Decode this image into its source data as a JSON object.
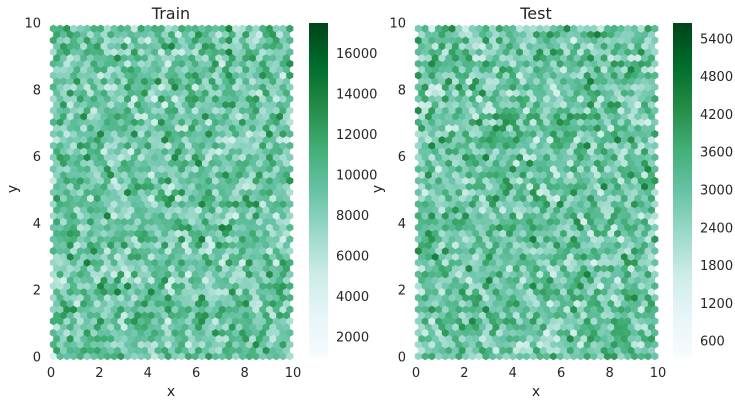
{
  "chart_data": [
    {
      "type": "hexbin",
      "title": "Train",
      "xlabel": "x",
      "ylabel": "y",
      "xlim": [
        0,
        10
      ],
      "ylim": [
        0,
        10
      ],
      "x_ticks": [
        "0",
        "2",
        "4",
        "6",
        "8",
        "10"
      ],
      "y_ticks": [
        "0",
        "2",
        "4",
        "6",
        "8",
        "10"
      ],
      "colorbar": {
        "min": 1000,
        "max": 17500,
        "ticks": [
          "2000",
          "4000",
          "6000",
          "8000",
          "10000",
          "12000",
          "14000",
          "16000"
        ]
      },
      "colormap": "BuGn",
      "grid": false
    },
    {
      "type": "hexbin",
      "title": "Test",
      "xlabel": "x",
      "ylabel": "y",
      "xlim": [
        0,
        10
      ],
      "ylim": [
        0,
        10
      ],
      "x_ticks": [
        "0",
        "2",
        "4",
        "6",
        "8",
        "10"
      ],
      "y_ticks": [
        "0",
        "2",
        "4",
        "6",
        "8",
        "10"
      ],
      "colorbar": {
        "min": 350,
        "max": 5650,
        "ticks": [
          "600",
          "1200",
          "1800",
          "2400",
          "3000",
          "3600",
          "4200",
          "4800",
          "5400"
        ]
      },
      "colormap": "BuGn",
      "grid": false
    }
  ]
}
